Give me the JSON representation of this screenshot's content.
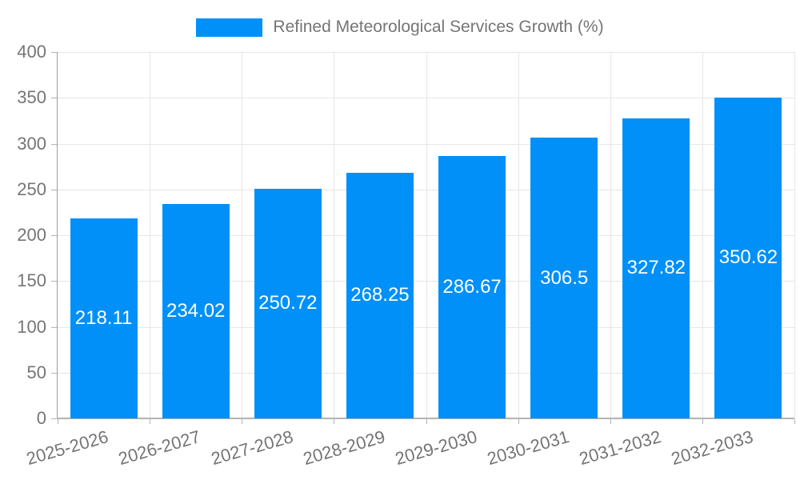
{
  "chart_data": {
    "type": "bar",
    "title": "Refined Meteorological Services Growth (%)",
    "categories": [
      "2025-2026",
      "2026-2027",
      "2027-2028",
      "2028-2029",
      "2029-2030",
      "2030-2031",
      "2031-2032",
      "2032-2033"
    ],
    "values": [
      218.11,
      234.02,
      250.72,
      268.25,
      286.67,
      306.5,
      327.82,
      350.62
    ],
    "value_labels": [
      "218.11",
      "234.02",
      "250.72",
      "268.25",
      "286.67",
      "306.5",
      "327.82",
      "350.62"
    ],
    "xlabel": "",
    "ylabel": "",
    "ylim": [
      0,
      400
    ],
    "yticks": [
      0,
      50,
      100,
      150,
      200,
      250,
      300,
      350,
      400
    ],
    "ytick_labels": [
      "0",
      "50",
      "100",
      "150",
      "200",
      "250",
      "300",
      "350",
      "400"
    ],
    "grid": true,
    "legend_position": "top-center",
    "colors": {
      "bar": "#0090f8",
      "axis_text": "#757575",
      "value_text": "#ffffff",
      "gridline": "#e7e7e7",
      "axis_line": "#9e9e9e",
      "baseline": "#b3b3b3",
      "tick": "#b3b3b3",
      "background": "#ffffff"
    }
  }
}
